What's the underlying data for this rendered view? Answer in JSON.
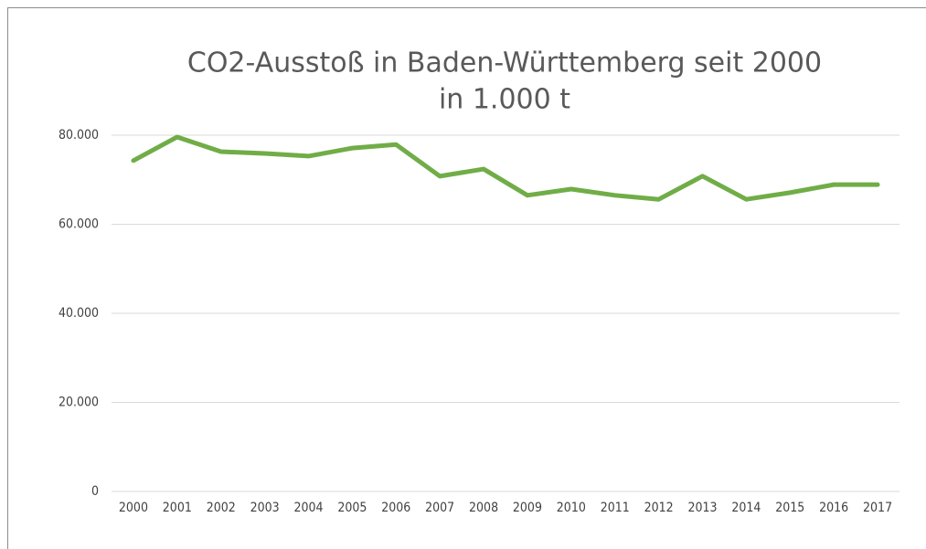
{
  "chart_data": {
    "type": "line",
    "title": "CO2-Ausstoß in Baden-Württemberg seit 2000",
    "subtitle": "in 1.000 t",
    "categories": [
      "2000",
      "2001",
      "2002",
      "2003",
      "2004",
      "2005",
      "2006",
      "2007",
      "2008",
      "2009",
      "2010",
      "2011",
      "2012",
      "2013",
      "2014",
      "2015",
      "2016",
      "2017"
    ],
    "series": [
      {
        "name": "CO2-Ausstoß",
        "color": "#70ad47",
        "values": [
          74300,
          79600,
          76300,
          75900,
          75300,
          77100,
          77900,
          70800,
          72400,
          66500,
          67900,
          66500,
          65600,
          70800,
          65600,
          67100,
          68900,
          68900
        ]
      }
    ],
    "ylim": [
      0,
      80000
    ],
    "yticks": [
      0,
      {
        "value": 20000,
        "label": "20.000"
      },
      {
        "value": 40000,
        "label": "40.000"
      },
      {
        "value": 60000,
        "label": "60.000"
      },
      {
        "value": 80000,
        "label": "80.000"
      }
    ],
    "grid": true,
    "legend": false
  }
}
